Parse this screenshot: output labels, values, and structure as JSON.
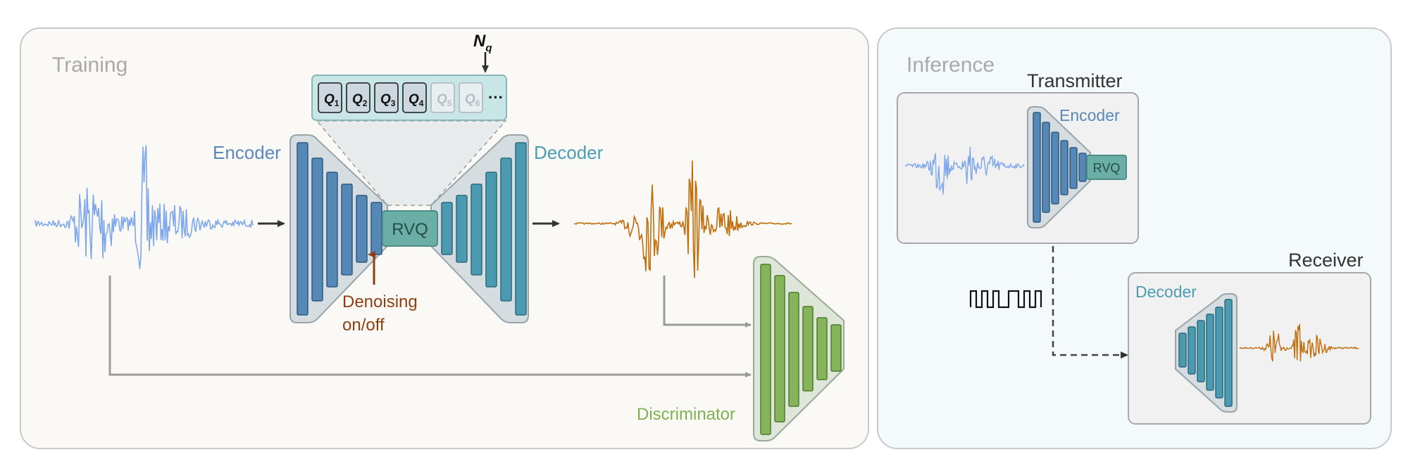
{
  "training": {
    "title": "Training",
    "encoder_label": "Encoder",
    "decoder_label": "Decoder",
    "rvq_label": "RVQ",
    "denoise_line1": "Denoising",
    "denoise_line2": "on/off",
    "nq_label": "N",
    "nq_sub": "q",
    "discriminator_label": "Discriminator",
    "quantizers": [
      {
        "label": "Q",
        "sub": "1",
        "active": true
      },
      {
        "label": "Q",
        "sub": "2",
        "active": true
      },
      {
        "label": "Q",
        "sub": "3",
        "active": true
      },
      {
        "label": "Q",
        "sub": "4",
        "active": true
      },
      {
        "label": "Q",
        "sub": "5",
        "active": false
      },
      {
        "label": "Q",
        "sub": "6",
        "active": false
      }
    ],
    "ellipsis": "···"
  },
  "inference": {
    "title": "Inference",
    "transmitter_label": "Transmitter",
    "receiver_label": "Receiver",
    "encoder_label": "Encoder",
    "decoder_label": "Decoder",
    "rvq_label": "RVQ"
  },
  "colors": {
    "input_wave": "#7ea7ec",
    "output_wave": "#c06e0c",
    "encoder_text": "#5b87b9",
    "decoder_text": "#4b9db3",
    "encoder_bar": "#5587b7",
    "decoder_bar": "#4b9ab0",
    "rvq_fill": "#6aaea5",
    "discriminator_bar": "#86b45a",
    "discriminator_text": "#7fb152",
    "denoise_text": "#8e3f12",
    "training_bg": "#faf9f5",
    "inference_bg": "#f4fafb"
  }
}
